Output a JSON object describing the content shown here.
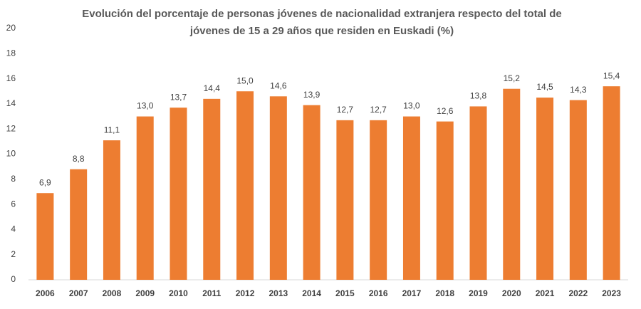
{
  "chart_data": {
    "type": "bar",
    "title": [
      "Evolución del porcentaje de personas jóvenes de nacionalidad  extranjera respecto del total de",
      "jóvenes de 15 a 29 años que residen en Euskadi (%)"
    ],
    "categories": [
      "2006",
      "2007",
      "2008",
      "2009",
      "2010",
      "2011",
      "2012",
      "2013",
      "2014",
      "2015",
      "2016",
      "2017",
      "2018",
      "2019",
      "2020",
      "2021",
      "2022",
      "2023"
    ],
    "values": [
      6.9,
      8.8,
      11.1,
      13.0,
      13.7,
      14.4,
      15.0,
      14.6,
      13.9,
      12.7,
      12.7,
      13.0,
      12.6,
      13.8,
      15.2,
      14.5,
      14.3,
      15.4
    ],
    "value_labels": [
      "6,9",
      "8,8",
      "11,1",
      "13,0",
      "13,7",
      "14,4",
      "15,0",
      "14,6",
      "13,9",
      "12,7",
      "12,7",
      "13,0",
      "12,6",
      "13,8",
      "15,2",
      "14,5",
      "14,3",
      "15,4"
    ],
    "color": "#ed7d31",
    "ylim": [
      0,
      20
    ],
    "yticks": [
      0,
      2,
      4,
      6,
      8,
      10,
      12,
      14,
      16,
      18,
      20
    ],
    "grid": false
  }
}
